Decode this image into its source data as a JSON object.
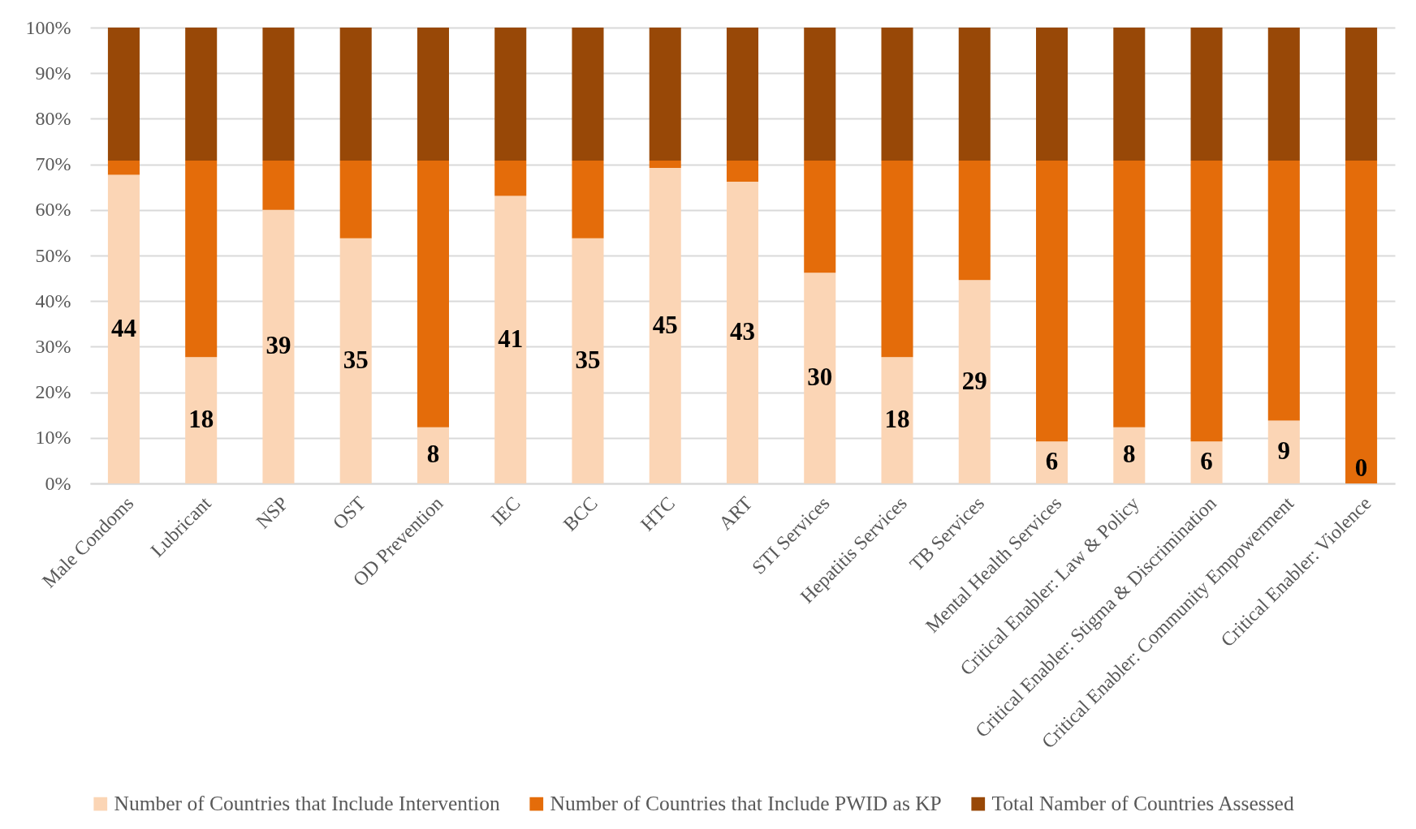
{
  "chart_data": {
    "type": "bar",
    "stacked": true,
    "categories": [
      "Male Condoms",
      "Lubricant",
      "NSP",
      "OST",
      "OD Prevention",
      "IEC",
      "BCC",
      "HTC",
      "ART",
      "STI Services",
      "Hepatitis Services",
      "TB Services",
      "Mental Health Services",
      "Critical Enabler: Law & Policy",
      "Critical Enabler: Stigma & Discrimination",
      "Critical Enabler: Community Empowerment",
      "Critical Enabler: Violence"
    ],
    "series": [
      {
        "name": "Number of Countries that Include Intervention",
        "color": "#fbd5b5",
        "values": [
          67.7,
          27.7,
          60.0,
          53.8,
          12.3,
          63.1,
          53.8,
          69.2,
          66.2,
          46.2,
          27.7,
          44.6,
          9.2,
          12.3,
          9.2,
          13.8,
          0
        ]
      },
      {
        "name": "Number of Countries that Include PWID as KP",
        "color": "#e46c0a",
        "values": [
          3.1,
          43.1,
          10.8,
          17.0,
          58.5,
          7.7,
          17.0,
          1.6,
          4.6,
          24.6,
          43.1,
          26.2,
          61.6,
          58.5,
          61.6,
          57.0,
          70.8
        ]
      },
      {
        "name": "Total Namber of Countries Assessed",
        "color": "#984807",
        "values": [
          29.2,
          29.2,
          29.2,
          29.2,
          29.2,
          29.2,
          29.2,
          29.2,
          29.2,
          29.2,
          29.2,
          29.2,
          29.2,
          29.2,
          29.2,
          29.2,
          29.2
        ]
      }
    ],
    "annotations": [
      "44",
      "18",
      "39",
      "35",
      "8",
      "41",
      "35",
      "45",
      "43",
      "30",
      "18",
      "29",
      "6",
      "8",
      "6",
      "9",
      "0"
    ],
    "ylim": [
      0,
      100
    ],
    "yticks": [
      {
        "value": 0,
        "label": "0%"
      },
      {
        "value": 10,
        "label": "10%"
      },
      {
        "value": 20,
        "label": "20%"
      },
      {
        "value": 30,
        "label": "30%"
      },
      {
        "value": 40,
        "label": "40%"
      },
      {
        "value": 50,
        "label": "50%"
      },
      {
        "value": 60,
        "label": "60%"
      },
      {
        "value": 70,
        "label": "70%"
      },
      {
        "value": 80,
        "label": "80%"
      },
      {
        "value": 90,
        "label": "90%"
      },
      {
        "value": 100,
        "label": "100%"
      }
    ],
    "grid": "y",
    "legend": "bottom"
  }
}
